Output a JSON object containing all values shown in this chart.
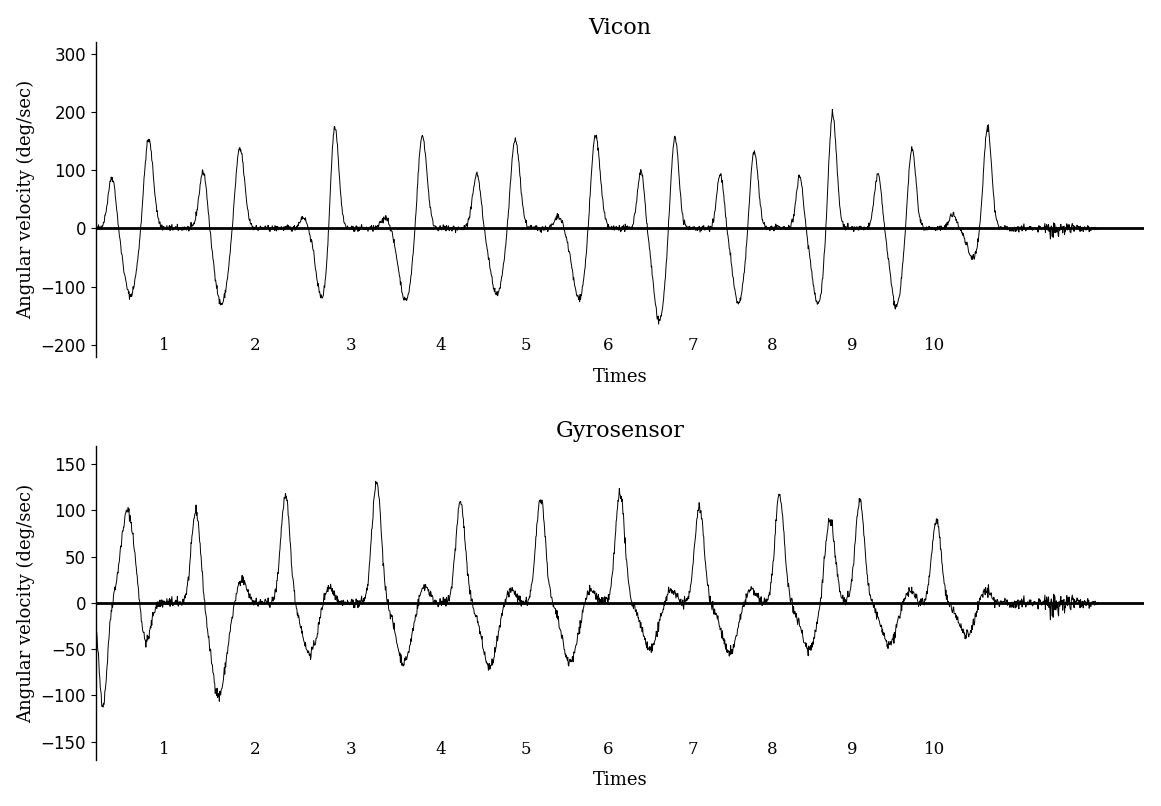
{
  "title1": "Vicon",
  "title2": "Gyrosensor",
  "ylabel": "Angular velocity (deg/sec)",
  "xlabel": "Times",
  "vicon_ylim": [
    -220,
    320
  ],
  "gyro_ylim": [
    -170,
    170
  ],
  "vicon_yticks": [
    -200,
    -100,
    0,
    100,
    200,
    300
  ],
  "gyro_yticks": [
    -150,
    -100,
    -50,
    0,
    50,
    100,
    150
  ],
  "background_color": "#ffffff",
  "line_color": "#000000",
  "title_fontsize": 16,
  "label_fontsize": 13,
  "tick_fontsize": 12,
  "vicon_cycles": [
    [
      0.18,
      90,
      0.38,
      -115,
      0.58,
      155,
      0.08
    ],
    [
      1.18,
      100,
      1.38,
      -130,
      1.58,
      140,
      0.08
    ],
    [
      2.28,
      20,
      2.48,
      -120,
      2.62,
      185,
      0.07
    ],
    [
      3.18,
      20,
      3.4,
      -125,
      3.58,
      165,
      0.08
    ],
    [
      4.18,
      95,
      4.4,
      -115,
      4.6,
      155,
      0.08
    ],
    [
      5.08,
      20,
      5.3,
      -120,
      5.48,
      165,
      0.08
    ],
    [
      5.98,
      100,
      6.18,
      -160,
      6.35,
      160,
      0.07
    ],
    [
      6.85,
      95,
      7.05,
      -130,
      7.22,
      135,
      0.07
    ],
    [
      7.72,
      90,
      7.92,
      -130,
      8.08,
      200,
      0.07
    ],
    [
      8.58,
      95,
      8.78,
      -135,
      8.95,
      140,
      0.07
    ],
    [
      9.4,
      25,
      9.62,
      -50,
      9.78,
      175,
      0.07
    ]
  ],
  "gyro_cycles": [
    [
      0.08,
      -110,
      0.35,
      100,
      0.55,
      -45,
      0.08
    ],
    [
      1.1,
      100,
      1.35,
      -100,
      1.6,
      25,
      0.09
    ],
    [
      2.08,
      115,
      2.35,
      -55,
      2.55,
      20,
      0.09
    ],
    [
      3.08,
      130,
      3.38,
      -65,
      3.6,
      20,
      0.09
    ],
    [
      4.0,
      110,
      4.32,
      -70,
      4.55,
      15,
      0.09
    ],
    [
      4.88,
      115,
      5.2,
      -65,
      5.42,
      15,
      0.09
    ],
    [
      5.75,
      120,
      6.08,
      -50,
      6.3,
      15,
      0.09
    ],
    [
      6.62,
      105,
      6.95,
      -55,
      7.18,
      15,
      0.09
    ],
    [
      7.5,
      115,
      7.82,
      -50,
      8.05,
      90,
      0.09
    ],
    [
      8.38,
      110,
      8.7,
      -45,
      8.92,
      15,
      0.09
    ],
    [
      9.22,
      90,
      9.55,
      -35,
      9.75,
      15,
      0.09
    ]
  ]
}
